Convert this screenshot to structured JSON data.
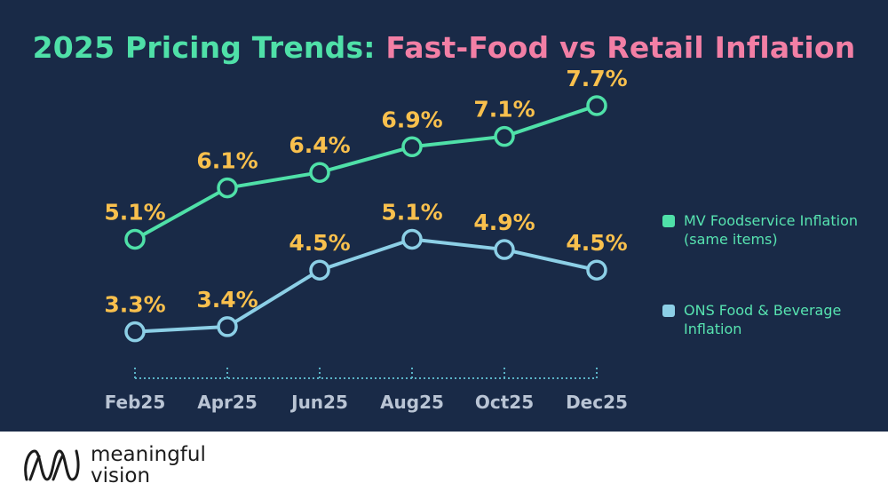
{
  "title": {
    "part1": "2025 Pricing Trends:",
    "part2": "Fast-Food vs Retail Inflation"
  },
  "chart_data": {
    "type": "line",
    "title": "2025 Pricing Trends: Fast-Food vs Retail Inflation",
    "categories": [
      "Feb25",
      "Apr25",
      "Jun25",
      "Aug25",
      "Oct25",
      "Dec25"
    ],
    "series": [
      {
        "name": "MV Foodservice Inflation (same items)",
        "values": [
          5.1,
          6.1,
          6.4,
          6.9,
          7.1,
          7.7
        ],
        "labels": [
          "5.1%",
          "6.1%",
          "6.4%",
          "6.9%",
          "7.1%",
          "7.7%"
        ],
        "color": "#4fe0a8"
      },
      {
        "name": "ONS Food & Beverage Inflation",
        "values": [
          3.3,
          3.4,
          4.5,
          5.1,
          4.9,
          4.5
        ],
        "labels": [
          "3.3%",
          "3.4%",
          "4.5%",
          "5.1%",
          "4.9%",
          "4.5%"
        ],
        "color": "#8ccfe6"
      }
    ],
    "xlabel": "",
    "ylabel": "",
    "ylim": [
      2.5,
      8.2
    ],
    "grid": false,
    "legend": "right",
    "label_color": "#f9c04d"
  },
  "legend": {
    "item1": "MV Foodservice Inflation (same items)",
    "item2": "ONS Food & Beverage Inflation"
  },
  "footer": {
    "brand_line1": "meaningful",
    "brand_line2": "vision"
  },
  "colors": {
    "background": "#192a47",
    "title_green": "#4fe0a8",
    "title_pink": "#f27fa5",
    "tick_text": "#b9c4d4",
    "axis": "#5ab3c6"
  }
}
